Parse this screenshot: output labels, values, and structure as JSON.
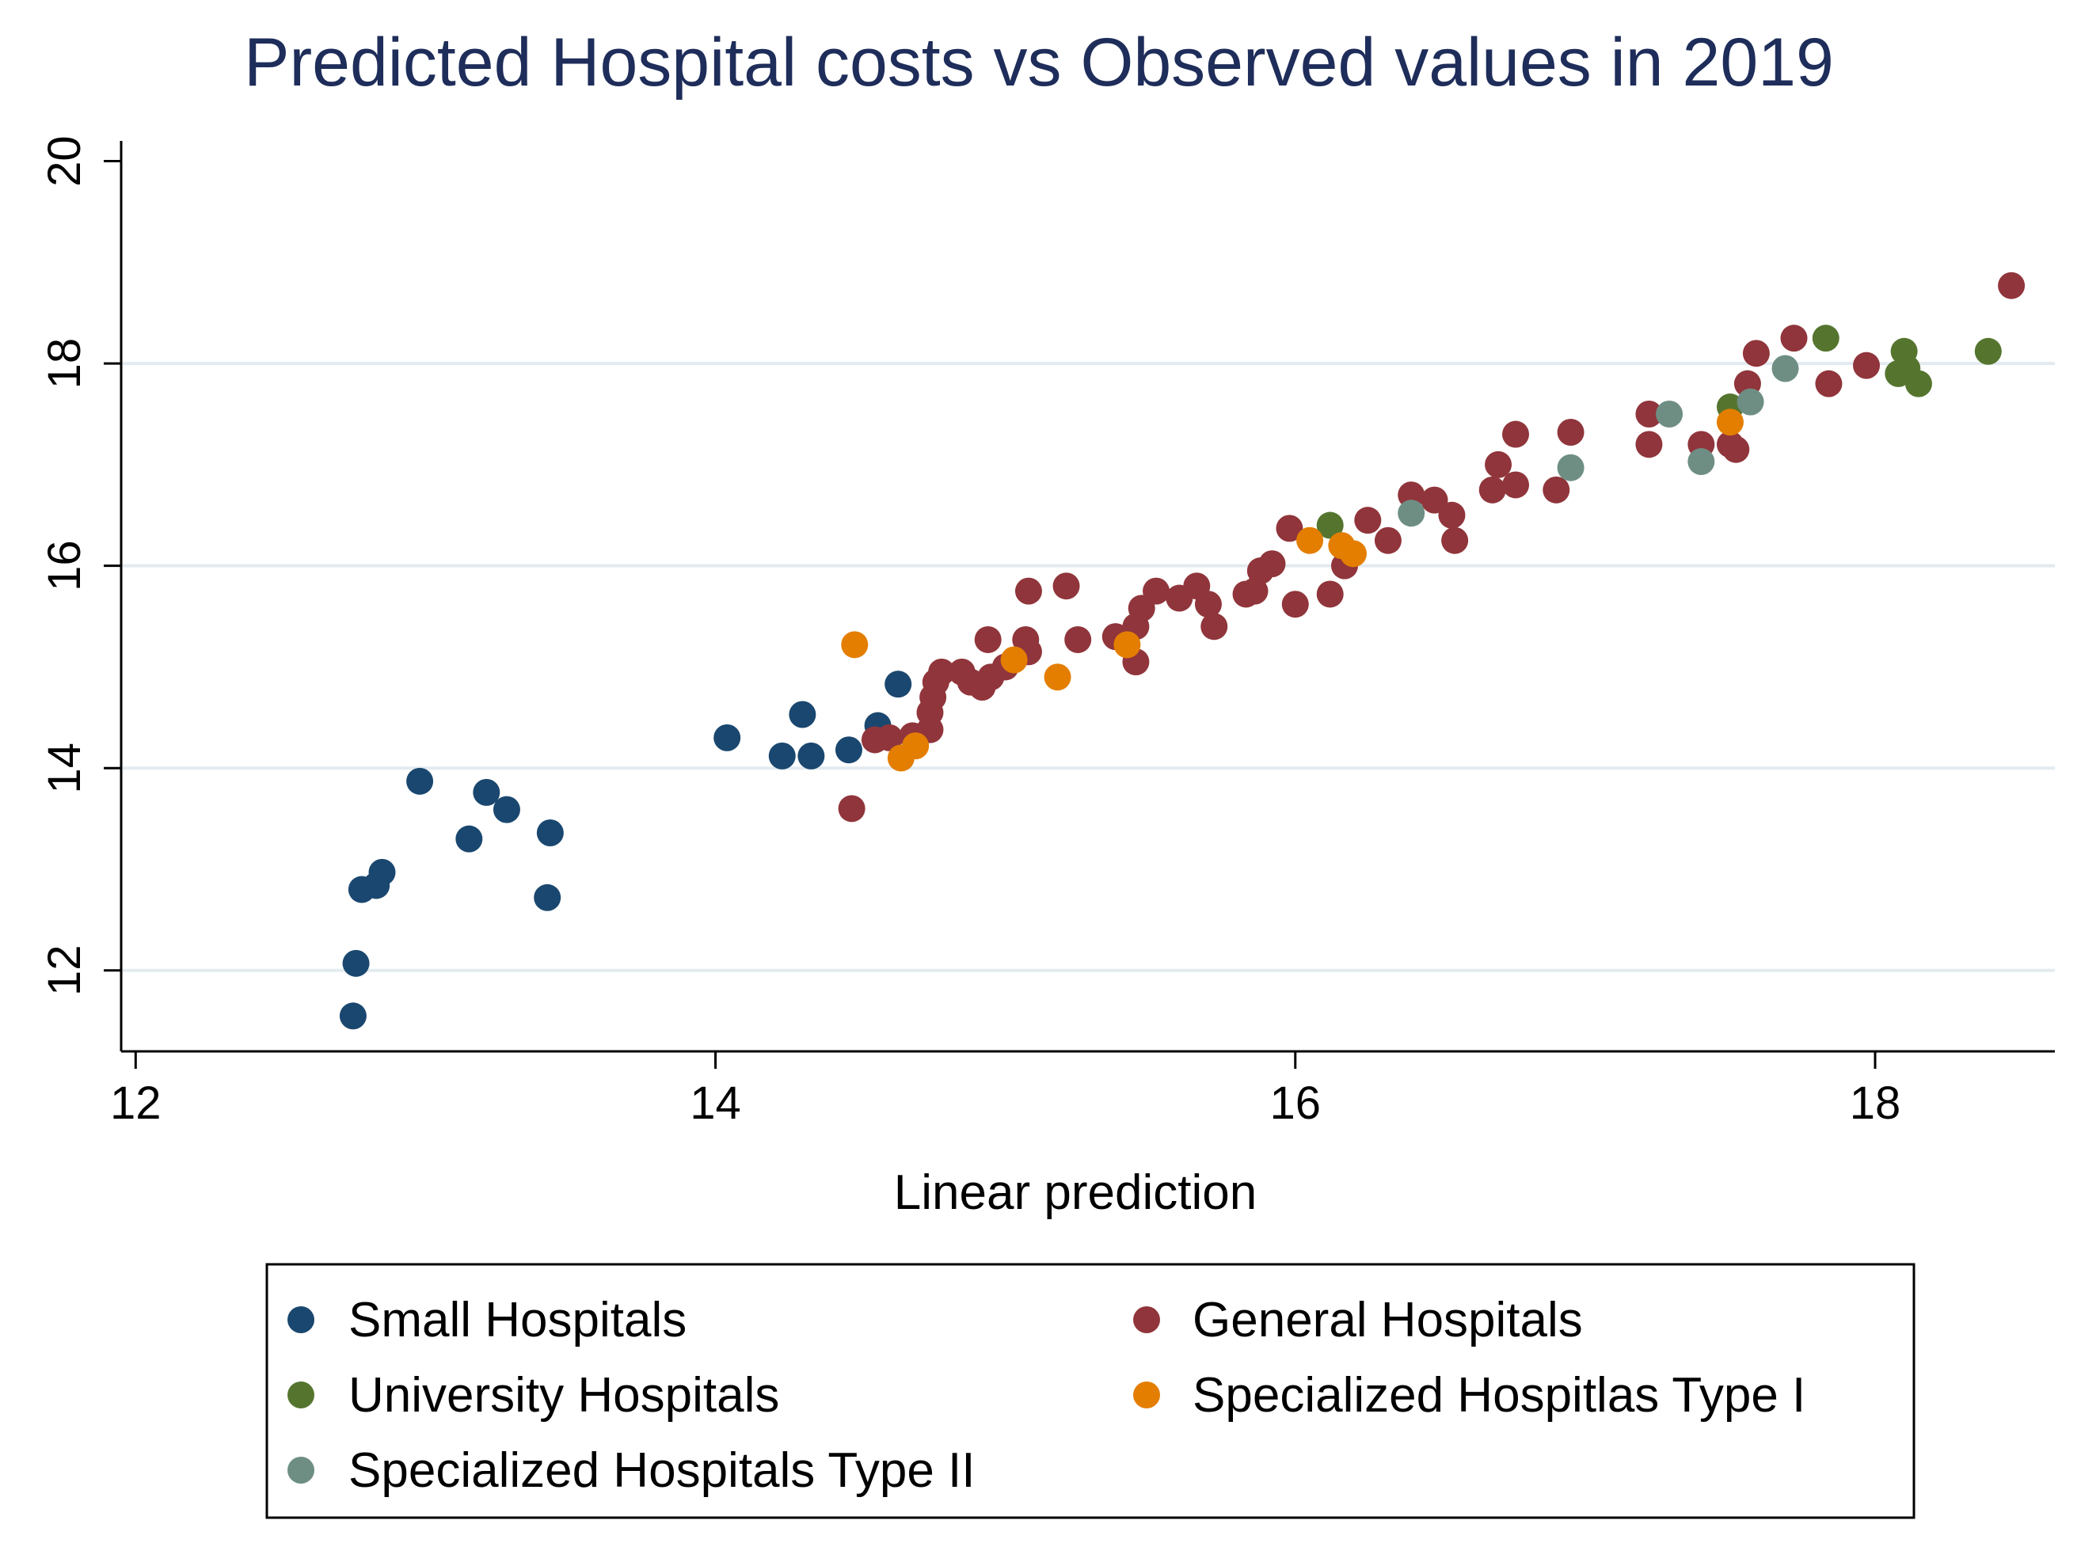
{
  "chart_data": {
    "type": "scatter",
    "title": "Predicted Hospital costs vs Observed values in 2019",
    "xlabel": "Linear prediction",
    "ylabel": "",
    "xlim": [
      11.95,
      18.62
    ],
    "ylim": [
      11.2,
      20.2
    ],
    "xticks": [
      12,
      14,
      16,
      18
    ],
    "yticks": [
      12,
      14,
      16,
      18,
      20
    ],
    "x_tick_labels": [
      "12",
      "14",
      "16",
      "18"
    ],
    "y_tick_labels": [
      "12",
      "14",
      "16",
      "18",
      "20"
    ],
    "grid": "horizontal",
    "legend_position": "bottom",
    "series": [
      {
        "name": "Small Hospitals",
        "color": "#1a476f",
        "points": [
          [
            12.75,
            11.55
          ],
          [
            12.76,
            12.07
          ],
          [
            12.78,
            12.8
          ],
          [
            12.83,
            12.84
          ],
          [
            12.85,
            12.97
          ],
          [
            12.98,
            13.87
          ],
          [
            13.15,
            13.3
          ],
          [
            13.21,
            13.76
          ],
          [
            13.28,
            13.59
          ],
          [
            13.42,
            12.72
          ],
          [
            13.43,
            13.36
          ],
          [
            14.04,
            14.3
          ],
          [
            14.23,
            14.12
          ],
          [
            14.3,
            14.53
          ],
          [
            14.33,
            14.12
          ],
          [
            14.46,
            14.18
          ],
          [
            14.56,
            14.42
          ],
          [
            14.63,
            14.83
          ]
        ]
      },
      {
        "name": "General Hospitals",
        "color": "#90353b",
        "points": [
          [
            14.47,
            13.6
          ],
          [
            14.55,
            14.28
          ],
          [
            14.6,
            14.3
          ],
          [
            14.68,
            14.32
          ],
          [
            14.74,
            14.38
          ],
          [
            14.74,
            14.55
          ],
          [
            14.75,
            14.7
          ],
          [
            14.76,
            14.85
          ],
          [
            14.78,
            14.95
          ],
          [
            14.85,
            14.95
          ],
          [
            14.88,
            14.85
          ],
          [
            14.92,
            14.8
          ],
          [
            14.95,
            14.9
          ],
          [
            15.0,
            15.0
          ],
          [
            14.94,
            15.27
          ],
          [
            15.08,
            15.15
          ],
          [
            15.07,
            15.27
          ],
          [
            15.08,
            15.75
          ],
          [
            15.21,
            15.8
          ],
          [
            15.25,
            15.27
          ],
          [
            15.38,
            15.3
          ],
          [
            15.45,
            15.05
          ],
          [
            15.45,
            15.4
          ],
          [
            15.47,
            15.58
          ],
          [
            15.52,
            15.75
          ],
          [
            15.6,
            15.68
          ],
          [
            15.66,
            15.8
          ],
          [
            15.7,
            15.62
          ],
          [
            15.72,
            15.4
          ],
          [
            15.83,
            15.72
          ],
          [
            15.86,
            15.75
          ],
          [
            15.88,
            15.95
          ],
          [
            15.92,
            16.02
          ],
          [
            15.98,
            16.37
          ],
          [
            16.0,
            15.62
          ],
          [
            16.12,
            15.72
          ],
          [
            16.17,
            16.0
          ],
          [
            16.25,
            16.45
          ],
          [
            16.32,
            16.25
          ],
          [
            16.4,
            16.7
          ],
          [
            16.48,
            16.65
          ],
          [
            16.54,
            16.5
          ],
          [
            16.55,
            16.25
          ],
          [
            16.68,
            16.75
          ],
          [
            16.7,
            17.0
          ],
          [
            16.76,
            16.8
          ],
          [
            16.76,
            17.3
          ],
          [
            16.9,
            16.75
          ],
          [
            16.95,
            17.32
          ],
          [
            17.22,
            17.2
          ],
          [
            17.22,
            17.5
          ],
          [
            17.4,
            17.2
          ],
          [
            17.5,
            17.2
          ],
          [
            17.52,
            17.15
          ],
          [
            17.56,
            17.8
          ],
          [
            17.59,
            18.1
          ],
          [
            17.72,
            18.25
          ],
          [
            17.84,
            17.8
          ],
          [
            17.97,
            17.98
          ],
          [
            18.47,
            18.77
          ]
        ]
      },
      {
        "name": "University Hospitals",
        "color": "#55752f",
        "points": [
          [
            16.12,
            16.4
          ],
          [
            17.5,
            17.57
          ],
          [
            17.83,
            18.25
          ],
          [
            18.08,
            17.9
          ],
          [
            18.1,
            18.12
          ],
          [
            18.11,
            17.95
          ],
          [
            18.15,
            17.8
          ],
          [
            18.39,
            18.12
          ]
        ]
      },
      {
        "name": "Specialized Hospitlas Type I",
        "color": "#e37e00",
        "points": [
          [
            14.48,
            15.22
          ],
          [
            14.64,
            14.1
          ],
          [
            14.69,
            14.22
          ],
          [
            15.03,
            15.07
          ],
          [
            15.18,
            14.9
          ],
          [
            15.42,
            15.22
          ],
          [
            16.05,
            16.25
          ],
          [
            16.16,
            16.2
          ],
          [
            16.2,
            16.12
          ],
          [
            17.5,
            17.42
          ]
        ]
      },
      {
        "name": "Specialized Hospitals Type II",
        "color": "#6e8e84",
        "points": [
          [
            16.4,
            16.52
          ],
          [
            16.95,
            16.97
          ],
          [
            17.29,
            17.5
          ],
          [
            17.4,
            17.03
          ],
          [
            17.57,
            17.62
          ],
          [
            17.69,
            17.95
          ]
        ]
      }
    ]
  }
}
